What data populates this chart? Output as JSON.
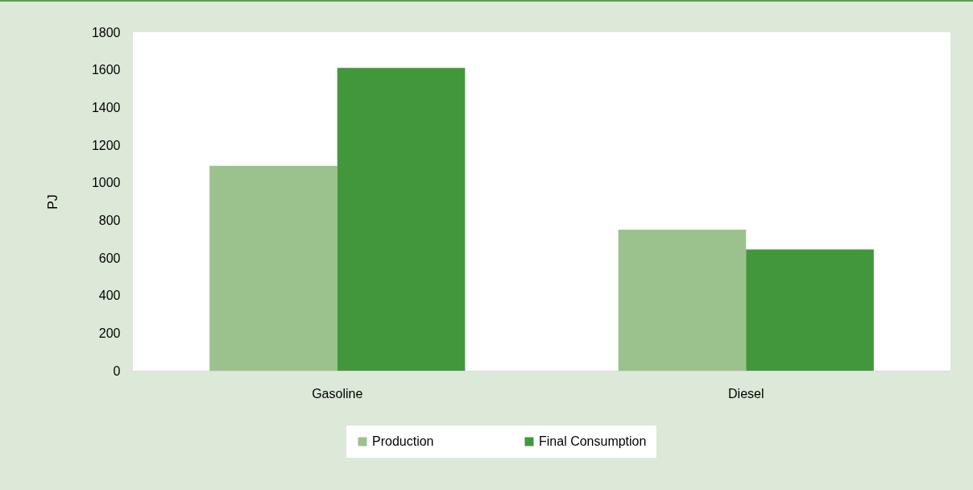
{
  "chart_data": {
    "type": "bar",
    "ylabel": "PJ",
    "categories": [
      "Gasoline",
      "Diesel"
    ],
    "series": [
      {
        "name": "Production",
        "color": "#9bc28c",
        "values": [
          1090,
          750
        ]
      },
      {
        "name": "Final Consumption",
        "color": "#43973b",
        "values": [
          1610,
          645
        ]
      }
    ],
    "ylim": [
      0,
      1800
    ],
    "yticks": [
      0,
      200,
      400,
      600,
      800,
      1000,
      1200,
      1400,
      1600,
      1800
    ],
    "grid": false,
    "legend": "bottom"
  }
}
